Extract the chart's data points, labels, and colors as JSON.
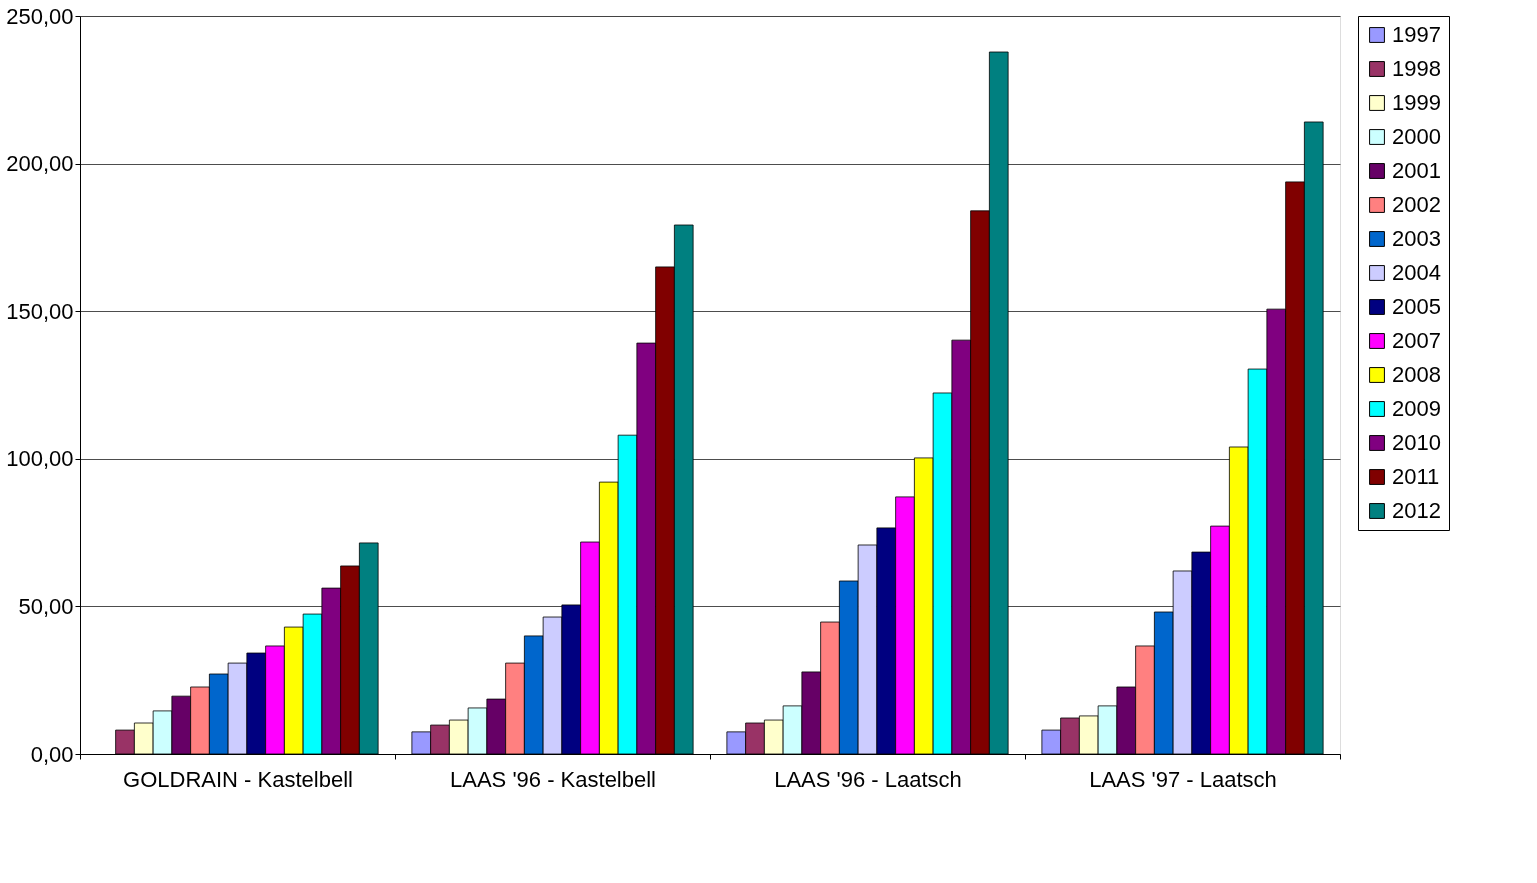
{
  "chart_data": {
    "type": "bar",
    "categories": [
      "GOLDRAIN - Kastelbell",
      "LAAS '96 - Kastelbell",
      "LAAS '96 - Laatsch",
      "LAAS '97 - Laatsch"
    ],
    "series": [
      {
        "name": "1997",
        "color": "#9999ff",
        "values": [
          null,
          7.5,
          7.5,
          8.1
        ]
      },
      {
        "name": "1998",
        "color": "#993366",
        "values": [
          8.1,
          9.8,
          10.5,
          12.2
        ]
      },
      {
        "name": "1999",
        "color": "#ffffcc",
        "values": [
          10.5,
          11.5,
          11.5,
          12.9
        ]
      },
      {
        "name": "2000",
        "color": "#ccffff",
        "values": [
          14.6,
          15.6,
          16.3,
          16.3
        ]
      },
      {
        "name": "2001",
        "color": "#660066",
        "values": [
          19.6,
          18.6,
          27.8,
          22.7
        ]
      },
      {
        "name": "2002",
        "color": "#ff8080",
        "values": [
          22.7,
          30.8,
          44.7,
          36.6
        ]
      },
      {
        "name": "2003",
        "color": "#0066cc",
        "values": [
          27.1,
          40.0,
          58.6,
          48.1
        ]
      },
      {
        "name": "2004",
        "color": "#ccccff",
        "values": [
          30.8,
          46.4,
          70.8,
          62.0
        ]
      },
      {
        "name": "2005",
        "color": "#000080",
        "values": [
          34.2,
          50.5,
          76.6,
          68.4
        ]
      },
      {
        "name": "2007",
        "color": "#ff00ff",
        "values": [
          36.6,
          71.8,
          87.1,
          77.2
        ]
      },
      {
        "name": "2008",
        "color": "#ffff00",
        "values": [
          43.0,
          92.1,
          100.3,
          104.0
        ]
      },
      {
        "name": "2009",
        "color": "#00ffff",
        "values": [
          47.4,
          108.0,
          122.3,
          130.4
        ]
      },
      {
        "name": "2010",
        "color": "#800080",
        "values": [
          56.2,
          139.2,
          140.2,
          150.7
        ]
      },
      {
        "name": "2011",
        "color": "#800000",
        "values": [
          63.7,
          165.0,
          184.0,
          193.8
        ]
      },
      {
        "name": "2012",
        "color": "#008080",
        "values": [
          71.5,
          179.2,
          237.8,
          214.1
        ]
      }
    ],
    "ylim": [
      0,
      250
    ],
    "yticks": [
      {
        "value": 0,
        "label": "0,00"
      },
      {
        "value": 50,
        "label": "50,00"
      },
      {
        "value": 100,
        "label": "100,00"
      },
      {
        "value": 150,
        "label": "150,00"
      },
      {
        "value": 200,
        "label": "200,00"
      },
      {
        "value": 250,
        "label": "250,00"
      }
    ],
    "grid": "y",
    "legend": "right"
  }
}
